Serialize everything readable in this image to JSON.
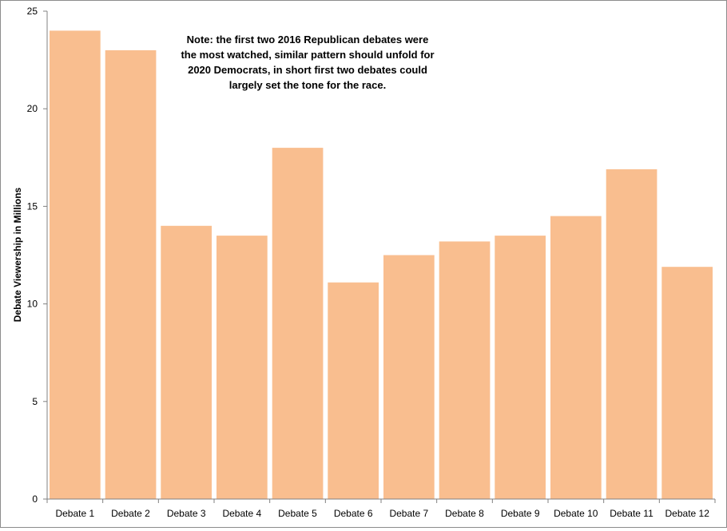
{
  "chart_data": {
    "type": "bar",
    "categories": [
      "Debate 1",
      "Debate 2",
      "Debate 3",
      "Debate 4",
      "Debate 5",
      "Debate 6",
      "Debate 7",
      "Debate 8",
      "Debate 9",
      "Debate 10",
      "Debate 11",
      "Debate 12"
    ],
    "values": [
      24,
      23,
      14,
      13.5,
      18,
      11.1,
      12.5,
      13.2,
      13.5,
      14.5,
      16.9,
      11.9
    ],
    "ylabel": "Debate Viewership in Millions",
    "xlabel": "",
    "ylim": [
      0,
      25
    ],
    "yticks": [
      0,
      5,
      10,
      15,
      20,
      25
    ],
    "grid": false,
    "bar_color": "#f9be8f",
    "annotation": [
      "Note:  the first two 2016  Republican debates were",
      "the most watched, similar pattern should unfold for",
      "2020  Democrats, in short first two debates could",
      "largely set the tone for the race."
    ]
  }
}
